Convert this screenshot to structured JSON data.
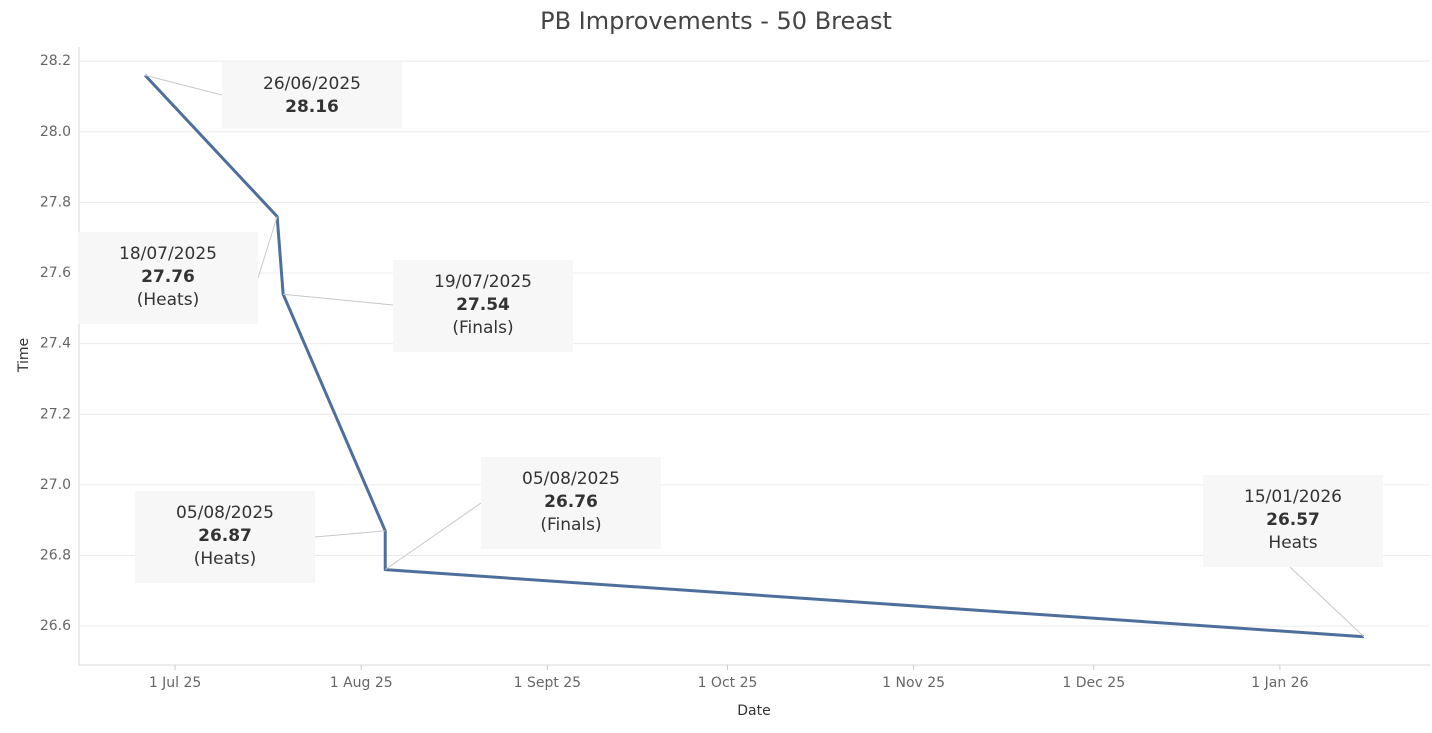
{
  "chart_data": {
    "type": "line",
    "title": "PB Improvements - 50 Breast",
    "x_label": "Date",
    "y_label": "Time",
    "x": [
      "26/06/2025",
      "18/07/2025",
      "19/07/2025",
      "05/08/2025",
      "05/08/2025",
      "15/01/2026"
    ],
    "values": [
      28.16,
      27.76,
      27.54,
      26.87,
      26.76,
      26.57
    ],
    "notes": [
      null,
      "(Heats)",
      "(Finals)",
      "(Heats)",
      "(Finals)",
      "Heats"
    ],
    "color": "#4e6f9c",
    "xlim": [
      "15/06/2025",
      "26/01/2026"
    ],
    "xticks": [
      {
        "value": "01/07/2025",
        "label": "1 Jul 25"
      },
      {
        "value": "01/08/2025",
        "label": "1 Aug 25"
      },
      {
        "value": "01/09/2025",
        "label": "1 Sept 25"
      },
      {
        "value": "01/10/2025",
        "label": "1 Oct 25"
      },
      {
        "value": "01/11/2025",
        "label": "1 Nov 25"
      },
      {
        "value": "01/12/2025",
        "label": "1 Dec 25"
      },
      {
        "value": "01/01/2026",
        "label": "1 Jan 26"
      }
    ],
    "ylim": [
      26.49,
      28.24
    ],
    "yticks": [
      26.6,
      26.8,
      {
        "value": 27,
        "label": "27.0"
      },
      27.2,
      27.4,
      27.6,
      27.8,
      {
        "value": 28,
        "label": "28.0"
      },
      28.2
    ],
    "grid": true
  }
}
